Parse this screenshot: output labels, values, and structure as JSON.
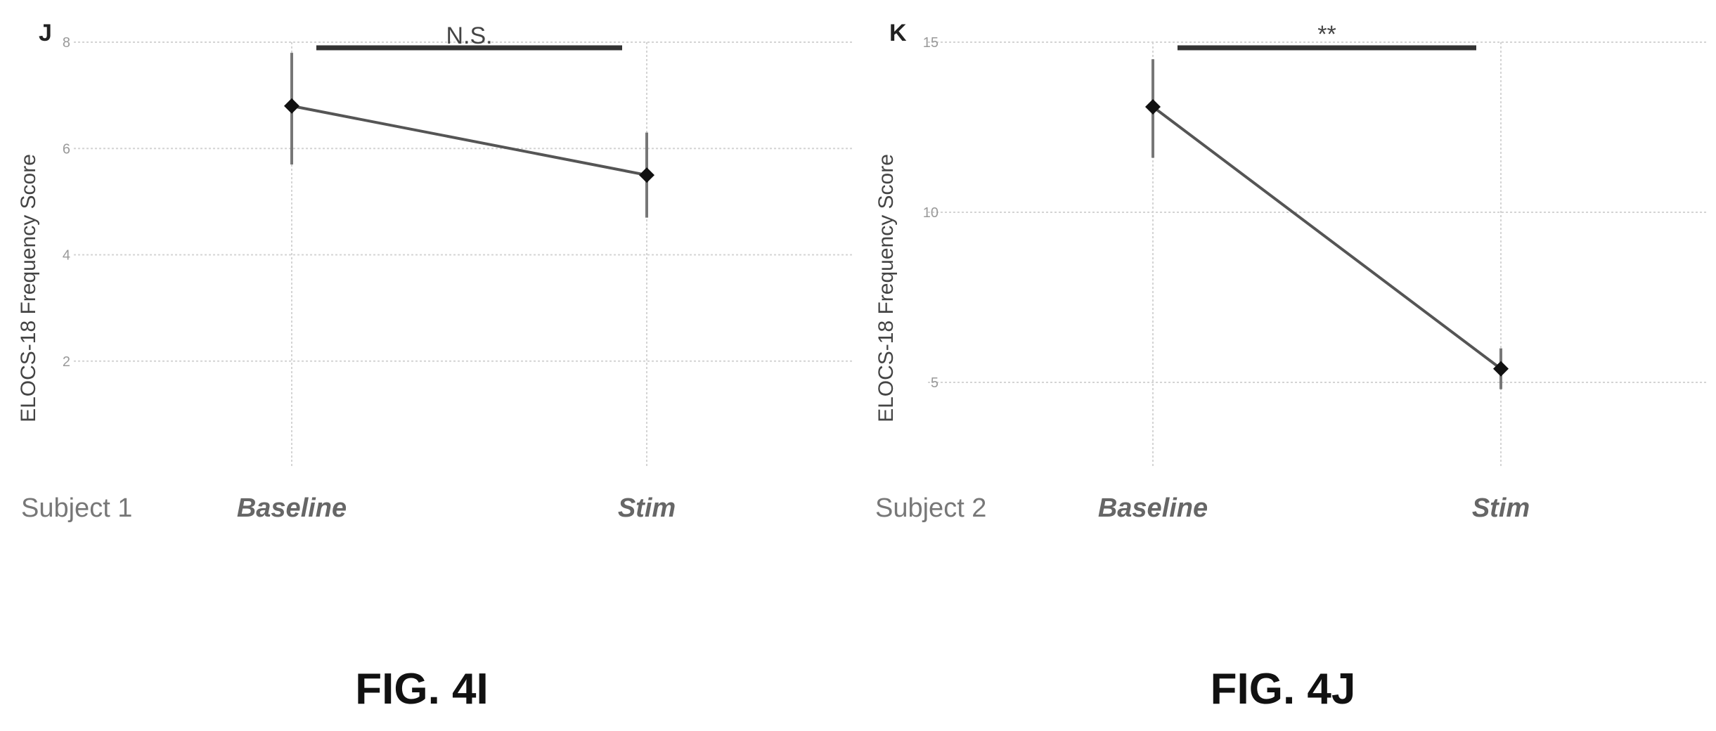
{
  "captions": [
    "FIG. 4I",
    "FIG. 4J"
  ],
  "chart_data": [
    {
      "type": "line",
      "panel_label": "J",
      "subject_label": "Subject 1",
      "ylabel": "ELOCS-18 Frequency Score",
      "categories": [
        "Baseline",
        "Stim"
      ],
      "ylim": [
        0,
        8
      ],
      "yticks": [
        2,
        4,
        6,
        8
      ],
      "grid": true,
      "series": [
        {
          "values": [
            6.8,
            5.5
          ],
          "error_low": [
            5.7,
            4.7
          ],
          "error_high": [
            7.8,
            6.3
          ]
        }
      ],
      "significance": {
        "label": "N.S.",
        "from": "Baseline",
        "to": "Stim"
      },
      "colors": {
        "line": "#555555",
        "marker": "#111111",
        "grid": "#d4d4d4",
        "bar": "#333333"
      }
    },
    {
      "type": "line",
      "panel_label": "K",
      "subject_label": "Subject 2",
      "ylabel": "ELOCS-18 Frequency Score",
      "categories": [
        "Baseline",
        "Stim"
      ],
      "ylim": [
        2.5,
        15
      ],
      "yticks": [
        5,
        10,
        15
      ],
      "grid": true,
      "series": [
        {
          "values": [
            13.1,
            5.4
          ],
          "error_low": [
            11.6,
            4.8
          ],
          "error_high": [
            14.5,
            6.0
          ]
        }
      ],
      "significance": {
        "label": "**",
        "from": "Baseline",
        "to": "Stim"
      },
      "colors": {
        "line": "#555555",
        "marker": "#111111",
        "grid": "#d4d4d4",
        "bar": "#333333"
      }
    }
  ]
}
